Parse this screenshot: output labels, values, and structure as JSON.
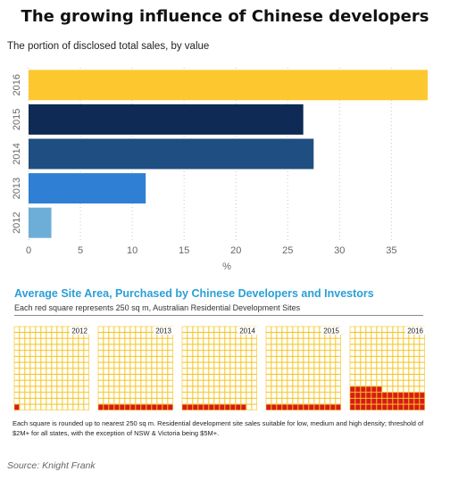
{
  "title": "The growing influence of Chinese developers",
  "subtitle": "The portion of disclosed total sales, by value",
  "source": "Source: Knight Frank",
  "colors": {
    "bar_2016": "#fdc82f",
    "bar_2015": "#0e2a55",
    "bar_2014": "#1f4e82",
    "bar_2013": "#2f7fd4",
    "bar_2012": "#6daed8",
    "chart2_title": "#2a9fd6",
    "grid_cell": "#f4c21a",
    "filled_cell": "#d71a1a"
  },
  "chart_data": [
    {
      "type": "bar",
      "orientation": "horizontal",
      "categories": [
        "2016",
        "2015",
        "2014",
        "2013",
        "2012"
      ],
      "values": [
        38.5,
        26.5,
        27.5,
        11.3,
        2.2
      ],
      "xlabel": "%",
      "ylabel": "",
      "xlim": [
        0,
        38.5
      ],
      "xticks": [
        "0",
        "5",
        "10",
        "15",
        "20",
        "25",
        "30",
        "35"
      ],
      "grid": "vertical dotted"
    },
    {
      "type": "table",
      "title": "Average Site Area, Purchased by Chinese Developers and Investors",
      "subtitle": "Each red square represents 250 sq m, Australian Residential Development Sites",
      "categories": [
        "2012",
        "2013",
        "2014",
        "2015",
        "2016"
      ],
      "values": [
        1,
        14,
        12,
        14,
        48
      ],
      "grid_columns": 14,
      "grid_rows": 14,
      "footnote": "Each square is rounded up to nearest 250 sq m. Residential development site sales suitable for low, medium and high density; threshold of $2M+ for all states, with the exception of NSW & Victoria being $5M+."
    }
  ]
}
